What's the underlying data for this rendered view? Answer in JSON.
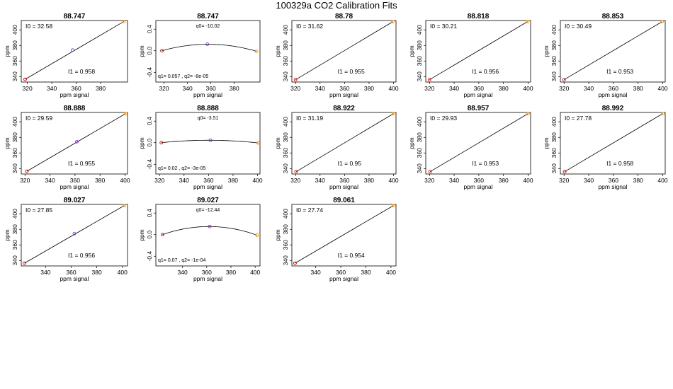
{
  "title": "100329a   CO2 Calibration Fits",
  "labels": {
    "xlabel": "ppm signal",
    "ylabel": "ppm"
  },
  "colors": {
    "fit_line": "#000000",
    "low_point": "#cc0000",
    "mid_point": "#8a2be2",
    "high_point": "#ff9900"
  },
  "chart_data": [
    {
      "type": "line",
      "kind": "linear",
      "title": "88.747",
      "xlim": [
        315,
        402
      ],
      "ylim": [
        333,
        412
      ],
      "xticks": [
        320,
        340,
        360,
        380
      ],
      "yticks": [
        340,
        360,
        380,
        400
      ],
      "points": [
        [
          318.2,
          336.5
        ],
        [
          357,
          374
        ],
        [
          399,
          410.7
        ]
      ],
      "text1": "I0 =  32.58",
      "text2": "I1 =  0.958"
    },
    {
      "type": "line",
      "kind": "resid",
      "title": "88.747",
      "xlim": [
        313,
        402
      ],
      "ylim": [
        -0.58,
        0.56
      ],
      "xticks": [
        320,
        340,
        360,
        380
      ],
      "yticks": [
        -0.4,
        0.0,
        0.4
      ],
      "ytick_labels": [
        "-0.4",
        "0.0",
        "0.4"
      ],
      "points": [
        [
          318.2,
          0
        ],
        [
          357,
          0.12
        ],
        [
          399,
          -0.01
        ]
      ],
      "text1": "q0=  -10.02",
      "text2": "q1= 0.057 ,  q2=  -8e-05"
    },
    {
      "type": "line",
      "kind": "linear",
      "title": "88.78",
      "xlim": [
        317,
        402
      ],
      "ylim": [
        333,
        412
      ],
      "xticks": [
        320,
        340,
        360,
        380,
        400
      ],
      "yticks": [
        340,
        360,
        380,
        400
      ],
      "points": [
        [
          320,
          336
        ],
        [
          399.5,
          410.5
        ]
      ],
      "text1": "I0 =  31.62",
      "text2": "I1 =  0.955"
    },
    {
      "type": "line",
      "kind": "linear",
      "title": "88.818",
      "xlim": [
        317,
        402
      ],
      "ylim": [
        333,
        412
      ],
      "xticks": [
        320,
        340,
        360,
        380,
        400
      ],
      "yticks": [
        340,
        360,
        380,
        400
      ],
      "points": [
        [
          320,
          336
        ],
        [
          399.5,
          410.5
        ]
      ],
      "text1": "I0 =  30.21",
      "text2": "I1 =  0.956"
    },
    {
      "type": "line",
      "kind": "linear",
      "title": "88.853",
      "xlim": [
        317,
        402
      ],
      "ylim": [
        333,
        412
      ],
      "xticks": [
        320,
        340,
        360,
        380,
        400
      ],
      "yticks": [
        340,
        360,
        380,
        400
      ],
      "points": [
        [
          320,
          336
        ],
        [
          399.5,
          410.5
        ]
      ],
      "text1": "I0 =  30.49",
      "text2": "I1 =  0.953"
    },
    {
      "type": "line",
      "kind": "linear",
      "title": "88.888",
      "xlim": [
        317,
        402
      ],
      "ylim": [
        333,
        412
      ],
      "xticks": [
        320,
        340,
        360,
        380,
        400
      ],
      "yticks": [
        340,
        360,
        380,
        400
      ],
      "points": [
        [
          321.5,
          336.5
        ],
        [
          361.5,
          374.5
        ],
        [
          400.5,
          410.5
        ]
      ],
      "text1": "I0 =  29.59",
      "text2": "I1 =  0.955"
    },
    {
      "type": "line",
      "kind": "resid",
      "title": "88.888",
      "xlim": [
        317,
        402
      ],
      "ylim": [
        -0.58,
        0.56
      ],
      "xticks": [
        320,
        340,
        360,
        380,
        400
      ],
      "yticks": [
        -0.4,
        0.0,
        0.4
      ],
      "ytick_labels": [
        "-0.4",
        "0.0",
        "0.4"
      ],
      "points": [
        [
          321.5,
          0
        ],
        [
          361.5,
          0.045
        ],
        [
          400.5,
          -0.005
        ]
      ],
      "text1": "q0=  -3.51",
      "text2": "q1= 0.02 ,  q2=  -3e-05"
    },
    {
      "type": "line",
      "kind": "linear",
      "title": "88.922",
      "xlim": [
        317,
        402
      ],
      "ylim": [
        333,
        412
      ],
      "xticks": [
        320,
        340,
        360,
        380,
        400
      ],
      "yticks": [
        340,
        360,
        380,
        400
      ],
      "points": [
        [
          320.5,
          336
        ],
        [
          400,
          410.5
        ]
      ],
      "text1": "I0 =  31.19",
      "text2": "I1 =  0.95"
    },
    {
      "type": "line",
      "kind": "linear",
      "title": "88.957",
      "xlim": [
        317,
        402
      ],
      "ylim": [
        333,
        412
      ],
      "xticks": [
        320,
        340,
        360,
        380,
        400
      ],
      "yticks": [
        340,
        360,
        380,
        400
      ],
      "points": [
        [
          320.5,
          336
        ],
        [
          400,
          410.5
        ]
      ],
      "text1": "I0 =  29.93",
      "text2": "I1 =  0.953"
    },
    {
      "type": "line",
      "kind": "linear",
      "title": "88.992",
      "xlim": [
        317,
        402
      ],
      "ylim": [
        333,
        412
      ],
      "xticks": [
        320,
        340,
        360,
        380,
        400
      ],
      "yticks": [
        340,
        360,
        380,
        400
      ],
      "points": [
        [
          320.5,
          336
        ],
        [
          400,
          410.5
        ]
      ],
      "text1": "I0 =  27.78",
      "text2": "I1 =  0.958"
    },
    {
      "type": "line",
      "kind": "linear",
      "title": "89.027",
      "xlim": [
        321,
        404
      ],
      "ylim": [
        333,
        412
      ],
      "xticks": [
        340,
        360,
        380,
        400
      ],
      "yticks": [
        340,
        360,
        380,
        400
      ],
      "points": [
        [
          323.5,
          336.5
        ],
        [
          362.5,
          374.5
        ],
        [
          401.5,
          410.5
        ]
      ],
      "text1": "I0 =  27.85",
      "text2": "I1 =  0.956"
    },
    {
      "type": "line",
      "kind": "resid",
      "title": "89.027",
      "xlim": [
        318,
        404
      ],
      "ylim": [
        -0.58,
        0.56
      ],
      "xticks": [
        340,
        360,
        380,
        400
      ],
      "yticks": [
        -0.4,
        0.0,
        0.4
      ],
      "ytick_labels": [
        "-0.4",
        "0.0",
        "0.4"
      ],
      "points": [
        [
          323.5,
          0
        ],
        [
          362.5,
          0.15
        ],
        [
          401.5,
          -0.01
        ]
      ],
      "text1": "q0=  -12.44",
      "text2": "q1= 0.07 ,  q2=  -1e-04"
    },
    {
      "type": "line",
      "kind": "linear",
      "title": "89.061",
      "xlim": [
        321,
        404
      ],
      "ylim": [
        333,
        412
      ],
      "xticks": [
        340,
        360,
        380,
        400
      ],
      "yticks": [
        340,
        360,
        380,
        400
      ],
      "points": [
        [
          323.5,
          336.5
        ],
        [
          402,
          410.5
        ]
      ],
      "text1": "I0 =  27.74",
      "text2": "I1 =  0.954"
    }
  ]
}
